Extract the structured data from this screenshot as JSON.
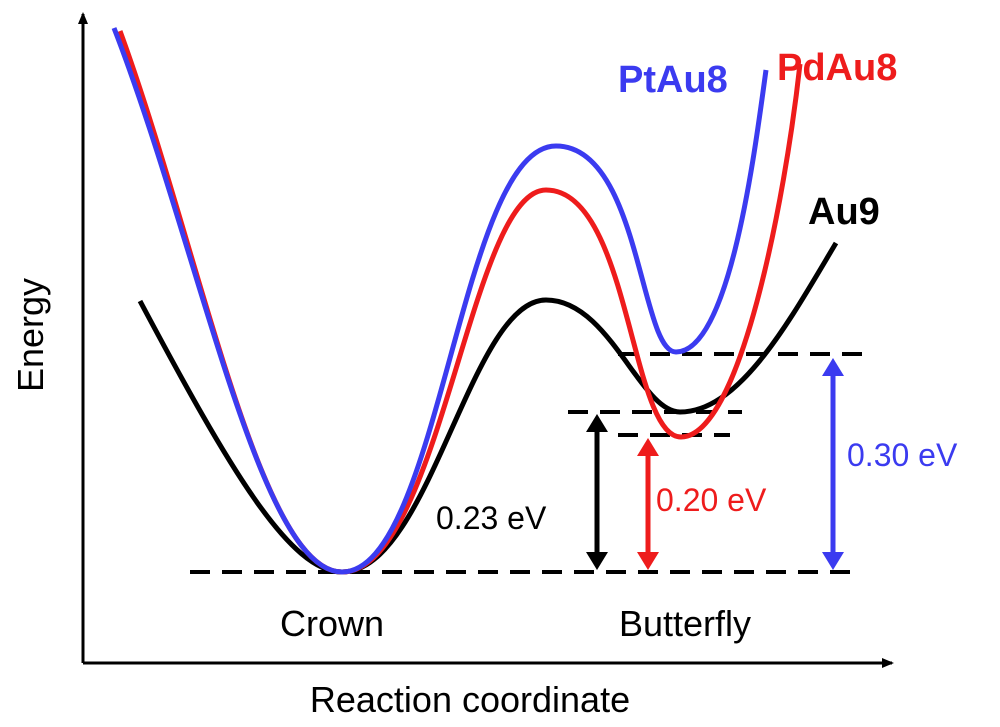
{
  "chart_data": {
    "type": "line",
    "title": "",
    "xlabel": "Reaction coordinate",
    "ylabel": "Energy",
    "states": [
      "Crown",
      "Butterfly"
    ],
    "series": [
      {
        "name": "PtAu8",
        "color": "#3b3bf0",
        "barrier_rel": 0.52,
        "butterfly_rel": 0.3
      },
      {
        "name": "PdAu8",
        "color": "#ee1c1c",
        "barrier_rel": 0.46,
        "butterfly_rel": 0.2
      },
      {
        "name": "Au9",
        "color": "#000000",
        "barrier_rel": 0.33,
        "butterfly_rel": 0.23
      }
    ],
    "annotations": [
      {
        "text": "0.23 eV",
        "series": "Au9",
        "color": "#000000"
      },
      {
        "text": "0.20 eV",
        "series": "PdAu8",
        "color": "#ee1c1c"
      },
      {
        "text": "0.30 eV",
        "series": "PtAu8",
        "color": "#3b3bf0"
      }
    ],
    "energy_unit": "eV"
  }
}
